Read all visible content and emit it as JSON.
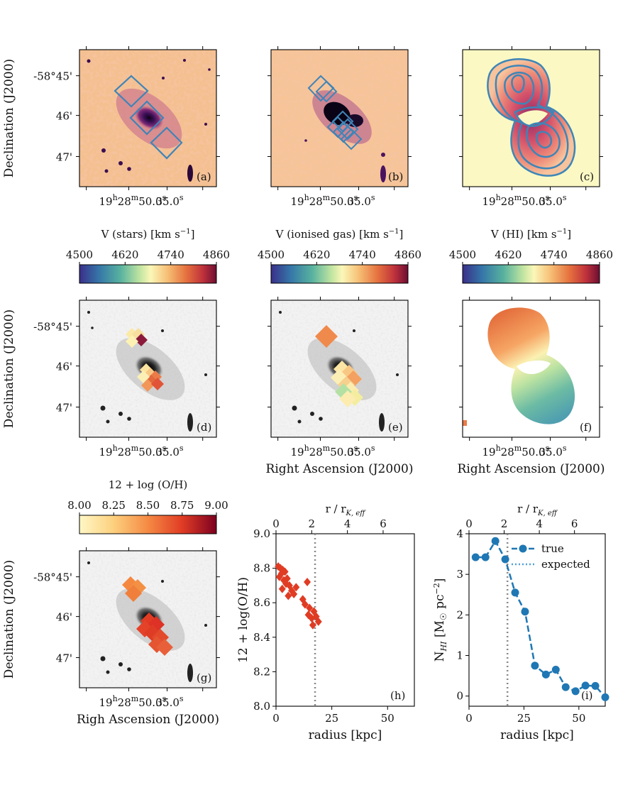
{
  "colors": {
    "diamond_outline": "#3f84b8",
    "contour": "#3d86b8",
    "oh_points": "#e03c24",
    "hi_line": "#1f77b4",
    "vline": "#888888"
  },
  "map_panels": {
    "ra_ticks": [
      "19$28$50.0$",
      "35.0$"
    ],
    "ra_tick_parts": [
      {
        "h": "19",
        "m": "28",
        "s": "50.0"
      },
      {
        "s": "35.0"
      }
    ],
    "dec_ticks": [
      "-58°45'",
      "46'",
      "47'"
    ],
    "ylabel": "Declination (J2000)",
    "xlabel_row2": "Right Ascension (J2000)",
    "xlabel_row3": "Righ Ascension (J2000)",
    "panel_tags": [
      "(a)",
      "(b)",
      "(c)",
      "(d)",
      "(e)",
      "(f)",
      "(g)"
    ]
  },
  "colorbars": [
    {
      "label": "V (stars) [km s$^{-1}$]",
      "label_main": "V (stars) [km s",
      "label_sup": "−1",
      "label_end": "]",
      "ticks": [
        "4500",
        "4620",
        "4740",
        "4860"
      ]
    },
    {
      "label": "V (ionised gas) [km s$^{-1}$]",
      "label_main": "V (ionised gas) [km s",
      "label_sup": "−1",
      "label_end": "]",
      "ticks": [
        "4500",
        "4620",
        "4740",
        "4860"
      ]
    },
    {
      "label": "V (HI) [km s$^{-1}$]",
      "label_main": "V (HI) [km s",
      "label_sup": "−1",
      "label_end": "]",
      "ticks": [
        "4500",
        "4620",
        "4740",
        "4860"
      ]
    },
    {
      "label": "12 + log (O/H)",
      "label_main": "12 + log (O/H)",
      "label_sup": "",
      "label_end": "",
      "ticks": [
        "8.00",
        "8.25",
        "8.50",
        "8.75",
        "9.00"
      ]
    }
  ],
  "chart_data": [
    {
      "type": "scatter",
      "panel": "(h)",
      "xlabel": "radius [kpc]",
      "ylabel": "12 + log(O/H)",
      "top_xlabel": "r / r$_{K,eff}$",
      "top_xlabel_main": "r / r",
      "top_xlabel_sub": "K, eff",
      "xlim": [
        0,
        62
      ],
      "ylim": [
        8.0,
        9.0
      ],
      "xticks": [
        "0",
        "25",
        "50"
      ],
      "yticks": [
        "8.0",
        "8.2",
        "8.4",
        "8.6",
        "8.8",
        "9.0"
      ],
      "top_ticks": [
        "0",
        "2",
        "4",
        "6"
      ],
      "vline_x": 17.5,
      "points": [
        [
          1.0,
          8.81
        ],
        [
          2.0,
          8.8
        ],
        [
          3.0,
          8.79
        ],
        [
          2.5,
          8.77
        ],
        [
          4.0,
          8.78
        ],
        [
          1.5,
          8.75
        ],
        [
          3.5,
          8.73
        ],
        [
          5.0,
          8.74
        ],
        [
          4.5,
          8.71
        ],
        [
          6.0,
          8.7
        ],
        [
          2.8,
          8.68
        ],
        [
          7.0,
          8.67
        ],
        [
          9.0,
          8.69
        ],
        [
          14.0,
          8.72
        ],
        [
          5.5,
          8.64
        ],
        [
          8.0,
          8.65
        ],
        [
          12.0,
          8.62
        ],
        [
          13.0,
          8.59
        ],
        [
          15.0,
          8.57
        ],
        [
          17.0,
          8.55
        ],
        [
          14.5,
          8.53
        ],
        [
          16.0,
          8.51
        ],
        [
          18.0,
          8.52
        ],
        [
          19.0,
          8.49
        ],
        [
          16.5,
          8.47
        ]
      ]
    },
    {
      "type": "line",
      "panel": "(i)",
      "xlabel": "radius [kpc]",
      "ylabel": "N$_{HI}$ [M$_\\odot$ pc$^{-2}$]",
      "ylabel_n": "N",
      "ylabel_sub": "HI",
      "ylabel_rest": " [M",
      "ylabel_sun": "☉",
      "ylabel_unit": " pc",
      "ylabel_sup": "−2",
      "ylabel_end": "]",
      "top_xlabel": "r / r$_{K,eff}$",
      "top_xlabel_main": "r / r",
      "top_xlabel_sub": "K, eff",
      "xlim": [
        0,
        62
      ],
      "ylim": [
        -0.25,
        4.0
      ],
      "xticks": [
        "0",
        "25",
        "50"
      ],
      "yticks": [
        "0",
        "1",
        "2",
        "3",
        "4"
      ],
      "top_ticks": [
        "0",
        "2",
        "4",
        "6"
      ],
      "vline_x": 17.5,
      "legend": [
        "true",
        "expected"
      ],
      "series": [
        {
          "name": "true",
          "x": [
            3.0,
            7.5,
            12.0,
            16.5,
            21.0,
            25.5,
            30.0,
            35.0,
            39.5,
            44.0,
            48.5,
            53.0,
            57.5,
            62.0
          ],
          "y": [
            3.42,
            3.42,
            3.82,
            3.37,
            2.55,
            2.08,
            0.75,
            0.53,
            0.65,
            0.22,
            0.12,
            0.26,
            0.25,
            -0.03
          ]
        }
      ]
    }
  ]
}
